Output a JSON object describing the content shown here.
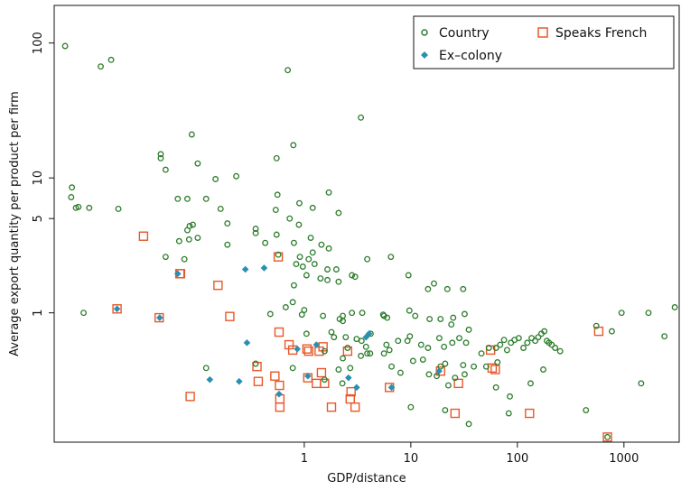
{
  "chart_data": {
    "type": "scatter",
    "xlabel": "GDP/distance",
    "ylabel": "Average export quantity per product per firm",
    "x_scale": "log",
    "y_scale": "log",
    "xlim": [
      0.0045,
      3300
    ],
    "ylim": [
      0.11,
      190
    ],
    "x_ticks": [
      1,
      10,
      100,
      1000
    ],
    "x_tick_labels": [
      "1",
      "10",
      "100",
      "1000"
    ],
    "y_ticks": [
      1,
      5,
      10,
      100
    ],
    "y_tick_labels": [
      "1",
      "5",
      "10",
      "100"
    ],
    "grid": false,
    "legend_position": "top-right",
    "colors": {
      "country": "#2e7d2e",
      "ex_colony": "#2a8fb0",
      "speaks_french": "#e8582a"
    },
    "series": [
      {
        "name": "Country",
        "marker": "open-circle",
        "points": [
          [
            0.0057,
            95
          ],
          [
            0.0123,
            67
          ],
          [
            0.0154,
            75
          ],
          [
            0.7,
            63
          ],
          [
            3.4,
            28
          ],
          [
            0.088,
            21
          ],
          [
            0.79,
            17.5
          ],
          [
            0.045,
            15
          ],
          [
            0.045,
            14
          ],
          [
            0.55,
            14
          ],
          [
            0.1,
            12.8
          ],
          [
            0.05,
            11.5
          ],
          [
            0.23,
            10.3
          ],
          [
            0.147,
            9.8
          ],
          [
            0.0066,
            8.5
          ],
          [
            0.0065,
            7.2
          ],
          [
            0.0076,
            6.1
          ],
          [
            0.0096,
            6
          ],
          [
            0.0072,
            6
          ],
          [
            0.018,
            5.9
          ],
          [
            0.065,
            7
          ],
          [
            0.08,
            7
          ],
          [
            0.12,
            7
          ],
          [
            0.56,
            7.5
          ],
          [
            1.7,
            7.8
          ],
          [
            0.9,
            6.5
          ],
          [
            1.2,
            6
          ],
          [
            2.1,
            5.5
          ],
          [
            0.164,
            5.9
          ],
          [
            0.54,
            5.8
          ],
          [
            0.35,
            4.2
          ],
          [
            0.08,
            4.1
          ],
          [
            0.084,
            4.4
          ],
          [
            0.09,
            4.5
          ],
          [
            0.19,
            4.6
          ],
          [
            0.73,
            5
          ],
          [
            0.89,
            4.5
          ],
          [
            0.35,
            3.9
          ],
          [
            0.55,
            3.8
          ],
          [
            0.1,
            3.6
          ],
          [
            0.083,
            3.5
          ],
          [
            0.067,
            3.4
          ],
          [
            0.19,
            3.2
          ],
          [
            0.43,
            3.3
          ],
          [
            1.15,
            3.6
          ],
          [
            1.45,
            3.2
          ],
          [
            0.8,
            3.3
          ],
          [
            0.05,
            2.6
          ],
          [
            0.075,
            2.5
          ],
          [
            0.91,
            2.6
          ],
          [
            1.1,
            2.5
          ],
          [
            1.2,
            2.8
          ],
          [
            1.7,
            3
          ],
          [
            1.25,
            2.3
          ],
          [
            1.65,
            2.1
          ],
          [
            2.0,
            2.1
          ],
          [
            0.84,
            2.3
          ],
          [
            0.97,
            2.2
          ],
          [
            1.05,
            1.9
          ],
          [
            0.8,
            1.6
          ],
          [
            2.8,
            1.9
          ],
          [
            3.0,
            1.85
          ],
          [
            3.9,
            2.5
          ],
          [
            0.57,
            2.7
          ],
          [
            1.42,
            1.8
          ],
          [
            1.65,
            1.75
          ],
          [
            2.1,
            1.7
          ],
          [
            6.5,
            2.6
          ],
          [
            9.5,
            1.9
          ],
          [
            14.5,
            1.5
          ],
          [
            16.5,
            1.65
          ],
          [
            22,
            1.5
          ],
          [
            31,
            1.5
          ],
          [
            0.78,
            1.2
          ],
          [
            0.67,
            1.1
          ],
          [
            1.0,
            1.05
          ],
          [
            1.5,
            0.95
          ],
          [
            0.48,
            0.98
          ],
          [
            0.0085,
            1
          ],
          [
            0.95,
            0.97
          ],
          [
            2.3,
            0.95
          ],
          [
            2.15,
            0.9
          ],
          [
            2.3,
            0.87
          ],
          [
            2.8,
            1
          ],
          [
            3.5,
            1
          ],
          [
            5.5,
            0.97
          ],
          [
            5.6,
            0.95
          ],
          [
            6.0,
            0.92
          ],
          [
            9.7,
            1.04
          ],
          [
            11,
            0.95
          ],
          [
            15,
            0.9
          ],
          [
            19,
            0.9
          ],
          [
            25,
            0.92
          ],
          [
            32,
            0.98
          ],
          [
            24,
            0.82
          ],
          [
            35,
            0.75
          ],
          [
            1.05,
            0.7
          ],
          [
            1.8,
            0.72
          ],
          [
            1.9,
            0.66
          ],
          [
            2.45,
            0.66
          ],
          [
            3.1,
            0.64
          ],
          [
            3.45,
            0.62
          ],
          [
            4.2,
            0.7
          ],
          [
            3.8,
            0.56
          ],
          [
            5.9,
            0.58
          ],
          [
            7.6,
            0.62
          ],
          [
            9.3,
            0.62
          ],
          [
            9.8,
            0.67
          ],
          [
            12.5,
            0.58
          ],
          [
            14.5,
            0.55
          ],
          [
            18.5,
            0.65
          ],
          [
            20.5,
            0.56
          ],
          [
            24.5,
            0.6
          ],
          [
            28.5,
            0.65
          ],
          [
            33,
            0.6
          ],
          [
            2.55,
            0.55
          ],
          [
            1.55,
            0.52
          ],
          [
            2.3,
            0.46
          ],
          [
            3.4,
            0.48
          ],
          [
            3.9,
            0.5
          ],
          [
            4.15,
            0.5
          ],
          [
            5.6,
            0.5
          ],
          [
            6.3,
            0.53
          ],
          [
            10.5,
            0.44
          ],
          [
            13,
            0.45
          ],
          [
            19,
            0.4
          ],
          [
            21,
            0.42
          ],
          [
            31,
            0.41
          ],
          [
            39,
            0.4
          ],
          [
            51,
            0.4
          ],
          [
            65,
            0.43
          ],
          [
            0.35,
            0.42
          ],
          [
            0.12,
            0.39
          ],
          [
            0.78,
            0.39
          ],
          [
            2.1,
            0.38
          ],
          [
            2.7,
            0.39
          ],
          [
            6.6,
            0.4
          ],
          [
            8,
            0.36
          ],
          [
            14.8,
            0.35
          ],
          [
            17.5,
            0.34
          ],
          [
            26,
            0.33
          ],
          [
            32,
            0.35
          ],
          [
            1.55,
            0.32
          ],
          [
            2.28,
            0.3
          ],
          [
            22.5,
            0.29
          ],
          [
            46,
            0.5
          ],
          [
            54,
            0.55
          ],
          [
            63,
            0.55
          ],
          [
            69,
            0.58
          ],
          [
            75,
            0.63
          ],
          [
            80,
            0.53
          ],
          [
            87,
            0.6
          ],
          [
            94,
            0.63
          ],
          [
            103,
            0.65
          ],
          [
            114,
            0.55
          ],
          [
            124,
            0.6
          ],
          [
            136,
            0.65
          ],
          [
            147,
            0.62
          ],
          [
            157,
            0.66
          ],
          [
            168,
            0.7
          ],
          [
            179,
            0.73
          ],
          [
            189,
            0.62
          ],
          [
            198,
            0.6
          ],
          [
            210,
            0.58
          ],
          [
            226,
            0.55
          ],
          [
            252,
            0.52
          ],
          [
            133,
            0.3
          ],
          [
            175,
            0.38
          ],
          [
            85,
            0.24
          ],
          [
            10,
            0.2
          ],
          [
            21,
            0.19
          ],
          [
            35,
            0.15
          ],
          [
            63,
            0.28
          ],
          [
            83,
            0.18
          ],
          [
            440,
            0.19
          ],
          [
            700,
            0.12
          ],
          [
            550,
            0.8
          ],
          [
            770,
            0.73
          ],
          [
            950,
            1
          ],
          [
            1700,
            1
          ],
          [
            1450,
            0.3
          ],
          [
            2400,
            0.67
          ],
          [
            3000,
            1.1
          ]
        ]
      },
      {
        "name": "Ex–colony",
        "marker": "filled-diamond",
        "points": [
          [
            0.0175,
            1.07
          ],
          [
            0.044,
            0.92
          ],
          [
            0.065,
            1.95
          ],
          [
            0.42,
            2.15
          ],
          [
            0.13,
            0.32
          ],
          [
            0.28,
            2.1
          ],
          [
            0.29,
            0.6
          ],
          [
            0.245,
            0.31
          ],
          [
            0.58,
            0.25
          ],
          [
            0.86,
            0.54
          ],
          [
            1.08,
            0.34
          ],
          [
            1.3,
            0.58
          ],
          [
            2.6,
            0.33
          ],
          [
            3.1,
            0.28
          ],
          [
            3.8,
            0.66
          ],
          [
            4.05,
            0.7
          ],
          [
            6.6,
            0.28
          ],
          [
            18.4,
            0.37
          ]
        ]
      },
      {
        "name": "Speaks French",
        "marker": "open-square",
        "points": [
          [
            0.031,
            3.7
          ],
          [
            0.0175,
            1.07
          ],
          [
            0.0435,
            0.92
          ],
          [
            0.068,
            1.95
          ],
          [
            0.069,
            1.95
          ],
          [
            0.155,
            1.6
          ],
          [
            0.085,
            0.24
          ],
          [
            0.2,
            0.94
          ],
          [
            0.36,
            0.4
          ],
          [
            0.37,
            0.31
          ],
          [
            0.53,
            0.34
          ],
          [
            0.57,
            2.6
          ],
          [
            0.58,
            0.72
          ],
          [
            0.585,
            0.29
          ],
          [
            0.59,
            0.2
          ],
          [
            0.59,
            0.23
          ],
          [
            0.72,
            0.58
          ],
          [
            0.78,
            0.53
          ],
          [
            1.06,
            0.54
          ],
          [
            1.08,
            0.33
          ],
          [
            1.1,
            0.52
          ],
          [
            1.3,
            0.3
          ],
          [
            1.38,
            0.52
          ],
          [
            1.45,
            0.36
          ],
          [
            1.5,
            0.56
          ],
          [
            1.55,
            0.3
          ],
          [
            1.8,
            0.2
          ],
          [
            2.55,
            0.52
          ],
          [
            2.7,
            0.23
          ],
          [
            2.75,
            0.26
          ],
          [
            3.0,
            0.2
          ],
          [
            6.3,
            0.28
          ],
          [
            19,
            0.37
          ],
          [
            26,
            0.18
          ],
          [
            28,
            0.3
          ],
          [
            56,
            0.53
          ],
          [
            58,
            0.39
          ],
          [
            62,
            0.38
          ],
          [
            130,
            0.18
          ],
          [
            580,
            0.73
          ],
          [
            700,
            0.12
          ]
        ]
      }
    ]
  }
}
